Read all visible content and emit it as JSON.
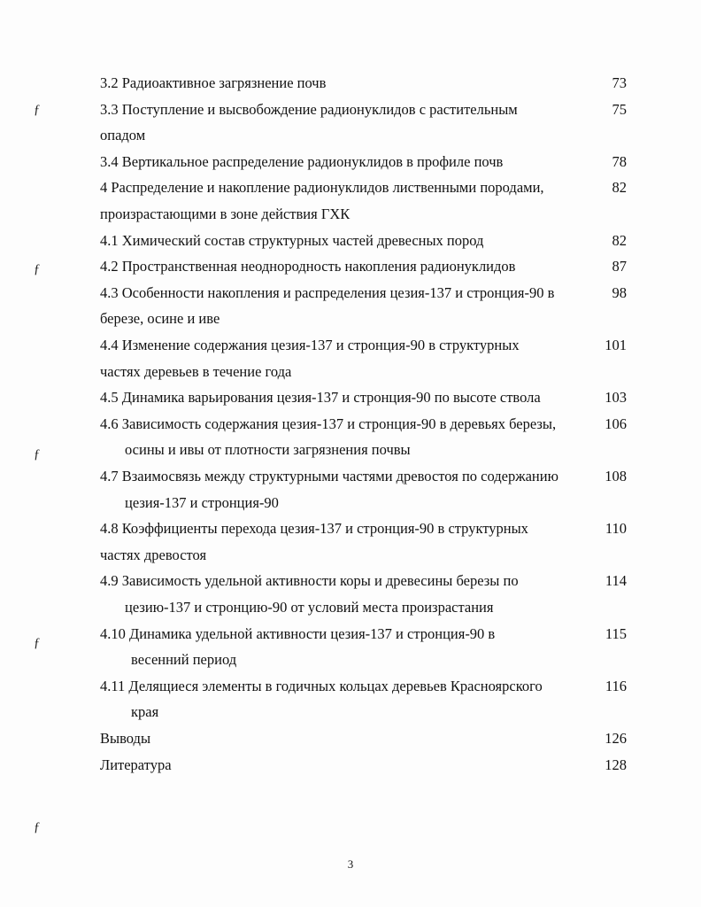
{
  "toc": [
    {
      "lines": [
        "3.2  Радиоактивное загрязнение почв"
      ],
      "page": "73",
      "indent": [
        0
      ]
    },
    {
      "lines": [
        "3.3 Поступление  и высвобождение радионуклидов с растительным",
        "опадом"
      ],
      "page": "75",
      "indent": [
        0,
        0
      ]
    },
    {
      "lines": [
        "3.4 Вертикальное распределение радионуклидов в профиле почв"
      ],
      "page": "78",
      "indent": [
        0
      ]
    },
    {
      "lines": [
        "4    Распределение и накопление радионуклидов лиственными породами,",
        "произрастающими в зоне действия ГХК"
      ],
      "page": "82",
      "indent": [
        0,
        0
      ]
    },
    {
      "lines": [
        "4.1 Химический состав  структурных частей древесных пород"
      ],
      "page": "82",
      "indent": [
        0
      ]
    },
    {
      "lines": [
        "4.2 Пространственная неоднородность накопления радионуклидов"
      ],
      "page": "87",
      "indent": [
        0
      ]
    },
    {
      "lines": [
        "4.3 Особенности накопления и распределения цезия-137 и стронция-90  в",
        "березе, осине и иве"
      ],
      "page": "98",
      "indent": [
        0,
        0
      ]
    },
    {
      "lines": [
        "4.4 Изменение содержания цезия-137 и стронция-90 в структурных",
        "частях  деревьев в течение года"
      ],
      "page": "101",
      "indent": [
        0,
        0
      ]
    },
    {
      "lines": [
        "4.5 Динамика варьирования цезия-137 и стронция-90 по высоте ствола"
      ],
      "page": "103",
      "indent": [
        0
      ]
    },
    {
      "lines": [
        "4.6 Зависимость содержания цезия-137 и стронция-90 в деревьях березы,",
        "осины и ивы от плотности загрязнения почвы"
      ],
      "page": "106",
      "indent": [
        0,
        28
      ]
    },
    {
      "lines": [
        "4.7 Взаимосвязь между структурными частями древостоя по содержанию",
        "цезия-137 и стронция-90"
      ],
      "page": "108",
      "indent": [
        0,
        28
      ]
    },
    {
      "lines": [
        "4.8 Коэффициенты перехода цезия-137 и стронция-90 в структурных",
        "частях      древостоя"
      ],
      "page": "110",
      "indent": [
        0,
        0
      ]
    },
    {
      "lines": [
        "4.9 Зависимость удельной активности коры и древесины березы  по",
        "цезию-137 и стронцию-90 от условий места произрастания"
      ],
      "page": "114",
      "indent": [
        0,
        28
      ]
    },
    {
      "lines": [
        "4.10 Динамика удельной активности цезия-137 и стронция-90  в",
        "весенний период"
      ],
      "page": "115",
      "indent": [
        0,
        35
      ]
    },
    {
      "lines": [
        "4.11 Делящиеся элементы в годичных кольцах деревьев Красноярского",
        "края"
      ],
      "page": "116",
      "indent": [
        0,
        35
      ]
    },
    {
      "lines": [
        "Выводы"
      ],
      "page": "126",
      "indent": [
        0
      ]
    },
    {
      "lines": [
        "Литература"
      ],
      "page": "128",
      "indent": [
        0
      ]
    }
  ],
  "page_number": "3"
}
